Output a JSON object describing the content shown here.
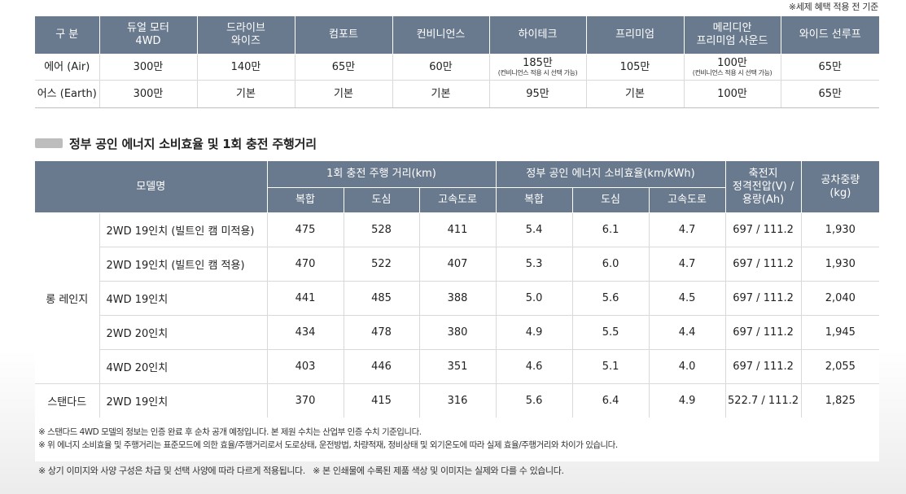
{
  "tax_note": "※세제 혜택 적용 전 기준",
  "options_table": {
    "headers": [
      "구 분",
      "듀얼 모터\n4WD",
      "드라이브\n와이즈",
      "컴포트",
      "컨비니언스",
      "하이테크",
      "프리미엄",
      "메리디안\n프리미엄 사운드",
      "와이드 선루프"
    ],
    "header_lines": [
      [
        "구 분"
      ],
      [
        "듀얼 모터",
        "4WD"
      ],
      [
        "드라이브",
        "와이즈"
      ],
      [
        "컴포트"
      ],
      [
        "컨비니언스"
      ],
      [
        "하이테크"
      ],
      [
        "프리미엄"
      ],
      [
        "메리디안",
        "프리미엄 사운드"
      ],
      [
        "와이드 선루프"
      ]
    ],
    "rows": [
      {
        "cells": [
          "에어 (Air)",
          "300만",
          "140만",
          "65만",
          "60만",
          "185만",
          "105만",
          "100만",
          "65만"
        ],
        "notes": {
          "5": "(컨비니언스 적용 시 선택 가능)",
          "7": "(컨비니언스 적용 시 선택 가능)"
        }
      },
      {
        "cells": [
          "어스 (Earth)",
          "300만",
          "기본",
          "기본",
          "기본",
          "95만",
          "기본",
          "100만",
          "65만"
        ]
      }
    ]
  },
  "section_title": "정부 공인 에너지 소비효율 및 1회 충전 주행거리",
  "efficiency_table": {
    "header_model": "모델명",
    "header_range": "1회 충전 주행 거리(km)",
    "header_eff": "정부 공인 에너지 소비효율(km/kWh)",
    "header_battery": [
      "축전지",
      "정격전압(V) /",
      "용량(Ah)"
    ],
    "header_weight": [
      "공차중량",
      "(kg)"
    ],
    "sub_headers": [
      "복합",
      "도심",
      "고속도로",
      "복합",
      "도심",
      "고속도로"
    ],
    "groups": [
      {
        "name": "롱 레인지",
        "rows": [
          [
            "2WD 19인치 (빌트인 캠 미적용)",
            "475",
            "528",
            "411",
            "5.4",
            "6.1",
            "4.7",
            "697 / 111.2",
            "1,930"
          ],
          [
            "2WD 19인치 (빌트인 캠 적용)",
            "470",
            "522",
            "407",
            "5.3",
            "6.0",
            "4.7",
            "697 / 111.2",
            "1,930"
          ],
          [
            "4WD 19인치",
            "441",
            "485",
            "388",
            "5.0",
            "5.6",
            "4.5",
            "697 / 111.2",
            "2,040"
          ],
          [
            "2WD 20인치",
            "434",
            "478",
            "380",
            "4.9",
            "5.5",
            "4.4",
            "697 / 111.2",
            "1,945"
          ],
          [
            "4WD 20인치",
            "403",
            "446",
            "351",
            "4.6",
            "5.1",
            "4.0",
            "697 / 111.2",
            "2,055"
          ]
        ]
      },
      {
        "name": "스탠다드",
        "rows": [
          [
            "2WD 19인치",
            "370",
            "415",
            "316",
            "5.6",
            "6.4",
            "4.9",
            "522.7 / 111.2",
            "1,825"
          ]
        ]
      }
    ]
  },
  "notes": [
    "※ 스탠다드 4WD 모델의 정보는 인증 완료 후 순차 공개 예정입니다. 본 제원 수치는 산업부 인증 수치 기준입니다.",
    "※ 위 에너지 소비효율 및 주행거리는 표준모드에 의한 효율/주행거리로서 도로상태, 운전방법, 차량적재, 정비상태 및 외기온도에 따라 실제 효율/주행거리와 차이가 있습니다."
  ],
  "footer": "※ 상기 이미지와 사양 구성은 차급 및 선택 사양에 따라 다르게 적용됩니다.   ※ 본 인쇄물에 수록된 제품 색상 및 이미지는 실제와 다를 수 있습니다."
}
